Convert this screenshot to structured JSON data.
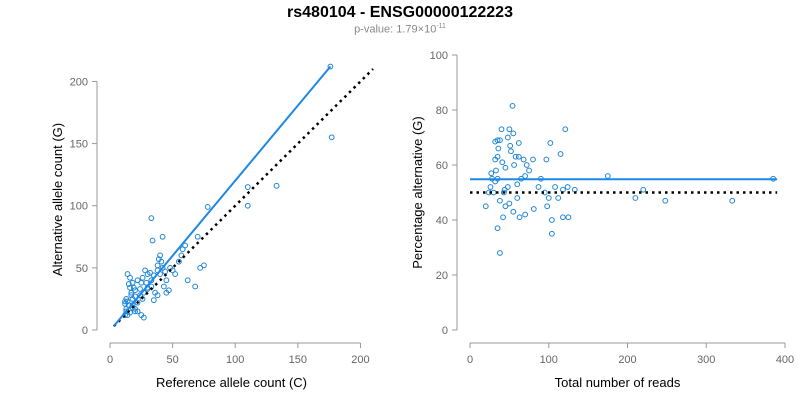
{
  "header": {
    "title": "rs480104 - ENSG00000122223",
    "pvalue_prefix": "p-value: 1.79×10",
    "pvalue_exponent": "-11"
  },
  "colors": {
    "points": "#1f85d6",
    "fit": "#1e88e5",
    "reference": "#000000",
    "axis": "#999999"
  },
  "chart_data": [
    {
      "type": "scatter",
      "title": "",
      "xlabel": "Reference allele count (C)",
      "ylabel": "Alternative allele count (G)",
      "xlim": [
        0,
        210
      ],
      "ylim": [
        0,
        210
      ],
      "xticks": [
        0,
        50,
        100,
        150,
        200
      ],
      "yticks": [
        0,
        50,
        100,
        150,
        200
      ],
      "grid": false,
      "fit_line": {
        "x": [
          3,
          176
        ],
        "y": [
          3,
          212
        ],
        "style": "solid"
      },
      "reference_line": {
        "x": [
          3,
          210
        ],
        "y": [
          3,
          210
        ],
        "style": "dotted"
      },
      "points": [
        [
          176,
          212
        ],
        [
          177,
          155
        ],
        [
          133,
          116
        ],
        [
          110,
          115
        ],
        [
          110,
          100
        ],
        [
          78,
          99
        ],
        [
          33,
          90
        ],
        [
          42,
          75
        ],
        [
          34,
          72
        ],
        [
          40,
          60
        ],
        [
          39,
          57
        ],
        [
          41,
          55
        ],
        [
          38,
          52
        ],
        [
          60,
          68
        ],
        [
          58,
          65
        ],
        [
          57,
          60
        ],
        [
          55,
          55
        ],
        [
          50,
          48
        ],
        [
          52,
          45
        ],
        [
          48,
          50
        ],
        [
          70,
          75
        ],
        [
          75,
          52
        ],
        [
          72,
          50
        ],
        [
          68,
          35
        ],
        [
          62,
          40
        ],
        [
          32,
          46
        ],
        [
          30,
          45
        ],
        [
          28,
          48
        ],
        [
          29,
          38
        ],
        [
          36,
          30
        ],
        [
          38,
          28
        ],
        [
          45,
          40
        ],
        [
          43,
          35
        ],
        [
          47,
          32
        ],
        [
          45,
          30
        ],
        [
          35,
          24
        ],
        [
          30,
          33
        ],
        [
          33,
          35
        ],
        [
          27,
          30
        ],
        [
          26,
          25
        ],
        [
          24,
          33
        ],
        [
          25,
          38
        ],
        [
          26,
          42
        ],
        [
          22,
          40
        ],
        [
          20,
          32
        ],
        [
          24,
          28
        ],
        [
          20,
          27
        ],
        [
          18,
          25
        ],
        [
          22,
          22
        ],
        [
          17,
          30
        ],
        [
          19,
          34
        ],
        [
          18,
          38
        ],
        [
          16,
          42
        ],
        [
          14,
          45
        ],
        [
          15,
          37
        ],
        [
          16,
          34
        ],
        [
          17,
          28
        ],
        [
          18,
          18
        ],
        [
          20,
          15
        ],
        [
          15,
          20
        ],
        [
          14,
          23
        ],
        [
          13,
          25
        ],
        [
          12,
          23
        ],
        [
          12,
          21
        ],
        [
          13,
          17
        ],
        [
          13,
          15
        ],
        [
          12,
          12
        ],
        [
          14,
          12
        ],
        [
          16,
          14
        ],
        [
          18,
          20
        ],
        [
          20,
          17
        ],
        [
          22,
          15
        ],
        [
          25,
          12
        ],
        [
          27,
          10
        ],
        [
          30,
          34
        ],
        [
          33,
          40
        ],
        [
          35,
          44
        ],
        [
          38,
          48
        ],
        [
          40,
          45
        ],
        [
          42,
          50
        ],
        [
          44,
          47
        ]
      ]
    },
    {
      "type": "scatter",
      "title": "",
      "xlabel": "Total number of reads",
      "ylabel": "Percentage alternative (G)",
      "xlim": [
        0,
        400
      ],
      "ylim": [
        0,
        100
      ],
      "xticks": [
        0,
        100,
        200,
        300,
        400
      ],
      "yticks": [
        0,
        20,
        40,
        60,
        80,
        100
      ],
      "grid": false,
      "fit_line": {
        "x": [
          0,
          390
        ],
        "y": [
          54.8,
          54.8
        ],
        "style": "solid"
      },
      "reference_line": {
        "x": [
          0,
          390
        ],
        "y": [
          50,
          50
        ],
        "style": "dotted"
      },
      "points": [
        [
          54,
          81.5
        ],
        [
          40,
          73
        ],
        [
          50,
          73
        ],
        [
          121,
          73
        ],
        [
          48,
          70
        ],
        [
          55,
          71.5
        ],
        [
          32,
          68.5
        ],
        [
          35,
          69
        ],
        [
          38,
          69
        ],
        [
          51,
          67
        ],
        [
          62,
          68
        ],
        [
          52,
          65
        ],
        [
          36,
          66
        ],
        [
          35,
          63
        ],
        [
          32,
          62
        ],
        [
          41,
          61
        ],
        [
          45,
          59
        ],
        [
          56,
          60
        ],
        [
          58,
          63
        ],
        [
          62,
          63
        ],
        [
          68,
          62
        ],
        [
          72,
          60
        ],
        [
          75,
          58
        ],
        [
          80,
          62
        ],
        [
          97,
          62
        ],
        [
          102,
          68
        ],
        [
          115,
          64
        ],
        [
          70,
          56
        ],
        [
          65,
          55
        ],
        [
          90,
          55
        ],
        [
          60,
          53
        ],
        [
          35,
          55
        ],
        [
          32,
          54
        ],
        [
          26,
          52
        ],
        [
          28,
          55
        ],
        [
          24,
          50
        ],
        [
          30,
          50
        ],
        [
          38,
          47
        ],
        [
          43,
          50
        ],
        [
          45,
          45
        ],
        [
          50,
          46
        ],
        [
          55,
          43
        ],
        [
          63,
          41
        ],
        [
          70,
          42
        ],
        [
          81,
          44
        ],
        [
          87,
          52
        ],
        [
          95,
          50
        ],
        [
          98,
          45
        ],
        [
          100,
          48
        ],
        [
          104,
          40
        ],
        [
          108,
          52
        ],
        [
          118,
          51
        ],
        [
          124,
          52
        ],
        [
          133,
          51
        ],
        [
          175,
          56
        ],
        [
          220,
          51
        ],
        [
          210,
          48
        ],
        [
          248,
          47
        ],
        [
          333,
          47
        ],
        [
          385,
          55
        ],
        [
          35,
          37
        ],
        [
          38,
          28
        ],
        [
          42,
          41
        ],
        [
          60,
          48
        ],
        [
          104,
          35
        ],
        [
          112,
          48
        ],
        [
          118,
          41
        ],
        [
          125,
          41
        ],
        [
          20,
          45
        ],
        [
          27,
          57
        ],
        [
          33,
          58
        ],
        [
          44,
          51
        ],
        [
          48,
          52
        ]
      ]
    }
  ]
}
